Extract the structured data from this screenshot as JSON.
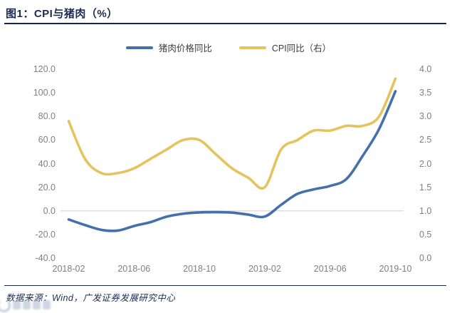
{
  "header": {
    "title": "图1：CPI与猪肉（%）"
  },
  "legend": [
    {
      "label": "猪肉价格同比",
      "color": "#4571ab"
    },
    {
      "label": "CPI同比（右）",
      "color": "#e5c35d"
    }
  ],
  "left_axis": {
    "ticks": [
      "120.0",
      "100.0",
      "80.0",
      "60.0",
      "40.0",
      "20.0",
      "0.0",
      "-20.0",
      "-40.0"
    ]
  },
  "right_axis": {
    "ticks": [
      "4.0",
      "3.5",
      "3.0",
      "2.5",
      "2.0",
      "1.5",
      "1.0",
      "0.5",
      "0.0"
    ]
  },
  "x_axis": {
    "ticks": [
      "2018-02",
      "2018-06",
      "2018-10",
      "2019-02",
      "2019-06",
      "2019-10"
    ]
  },
  "footer": {
    "source": "数据来源：Wind，广发证券发展研究中心"
  },
  "colors": {
    "brand_navy": "#1c2b52",
    "axis_label_gray": "#7f7f7f",
    "zero_gridline": "#d9d9d9",
    "pork_line_blue": "#4571ab",
    "cpi_line_yellow": "#e5c35d"
  },
  "chart_data": {
    "type": "line",
    "title": "图1：CPI与猪肉（%）",
    "x": [
      "2018-02",
      "2018-03",
      "2018-04",
      "2018-05",
      "2018-06",
      "2018-07",
      "2018-08",
      "2018-09",
      "2018-10",
      "2018-11",
      "2018-12",
      "2019-01",
      "2019-02",
      "2019-03",
      "2019-04",
      "2019-05",
      "2019-06",
      "2019-07",
      "2019-08",
      "2019-09",
      "2019-10"
    ],
    "series": [
      {
        "name": "猪肉价格同比",
        "axis": "left",
        "color": "#4571ab",
        "values": [
          -7.3,
          -12.0,
          -16.1,
          -16.7,
          -12.8,
          -9.6,
          -4.9,
          -2.4,
          -1.3,
          -1.1,
          -1.5,
          -3.2,
          -4.8,
          5.1,
          14.4,
          18.2,
          21.1,
          27.0,
          46.7,
          69.3,
          101.3
        ]
      },
      {
        "name": "CPI同比（右）",
        "axis": "right",
        "color": "#e5c35d",
        "values": [
          2.9,
          2.1,
          1.8,
          1.8,
          1.9,
          2.1,
          2.3,
          2.5,
          2.5,
          2.2,
          1.9,
          1.7,
          1.5,
          2.3,
          2.5,
          2.7,
          2.7,
          2.8,
          2.8,
          3.0,
          3.8
        ]
      }
    ],
    "left_ylim": [
      -40,
      120
    ],
    "right_ylim": [
      0,
      4
    ],
    "x_tick_labels": [
      "2018-02",
      "2018-06",
      "2018-10",
      "2019-02",
      "2019-06",
      "2019-10"
    ],
    "grid": "horizontal zero line only",
    "legend_position": "top center",
    "smooth": true
  }
}
